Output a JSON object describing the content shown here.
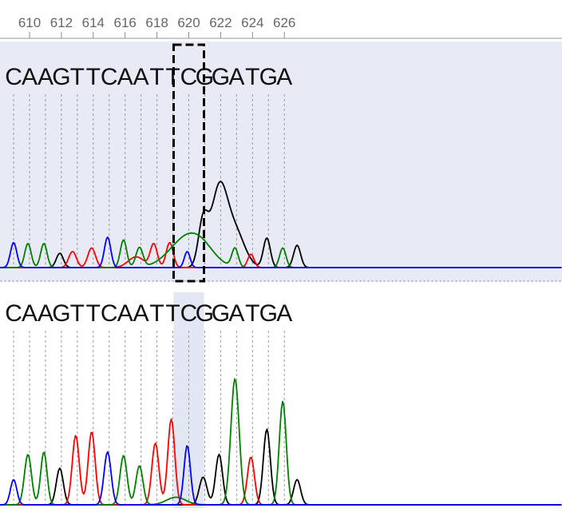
{
  "chart_data": {
    "type": "line",
    "title": "",
    "xlabel": "",
    "ylabel": "",
    "x_axis": {
      "ticks": [
        610,
        612,
        614,
        616,
        618,
        620,
        622,
        624,
        626
      ],
      "tick_labels": [
        "610",
        "612",
        "614",
        "616",
        "618",
        "620",
        "622",
        "624",
        "626"
      ]
    },
    "highlighted_position": 620,
    "base_colors": {
      "A": "#008000",
      "C": "#0000ff",
      "G": "#000000",
      "T": "#ff0000"
    },
    "panel_colors": {
      "top_background": "#e8eaf6",
      "highlight_column": "#e3e6f3"
    },
    "panels": [
      {
        "id": "sample",
        "base_calls": [
          "C",
          "A",
          "A",
          "G",
          "T",
          "T",
          "C",
          "A",
          "A",
          "T",
          "T",
          "C",
          "G",
          "G",
          "A",
          "T",
          "G",
          "A"
        ],
        "peaks": [
          {
            "base": "C",
            "pos": 609.0,
            "h": 0.28,
            "w": 0.2
          },
          {
            "base": "A",
            "pos": 609.9,
            "h": 0.27,
            "w": 0.2
          },
          {
            "base": "A",
            "pos": 610.9,
            "h": 0.27,
            "w": 0.2
          },
          {
            "base": "G",
            "pos": 611.9,
            "h": 0.16,
            "w": 0.22
          },
          {
            "base": "T",
            "pos": 612.7,
            "h": 0.18,
            "w": 0.24
          },
          {
            "base": "T",
            "pos": 613.9,
            "h": 0.22,
            "w": 0.24
          },
          {
            "base": "C",
            "pos": 614.9,
            "h": 0.34,
            "w": 0.2
          },
          {
            "base": "A",
            "pos": 615.9,
            "h": 0.31,
            "w": 0.2
          },
          {
            "base": "T",
            "pos": 616.7,
            "h": 0.12,
            "w": 0.5
          },
          {
            "base": "A",
            "pos": 616.9,
            "h": 0.22,
            "w": 0.22
          },
          {
            "base": "T",
            "pos": 617.8,
            "h": 0.26,
            "w": 0.22
          },
          {
            "base": "T",
            "pos": 618.8,
            "h": 0.28,
            "w": 0.22
          },
          {
            "base": "A",
            "pos": 619.9,
            "h": 0.33,
            "w": 1.1
          },
          {
            "base": "C",
            "pos": 619.9,
            "h": 0.18,
            "w": 0.18
          },
          {
            "base": "G",
            "pos": 620.9,
            "h": 0.5,
            "w": 0.3
          },
          {
            "base": "G",
            "pos": 621.9,
            "h": 0.85,
            "w": 0.5
          },
          {
            "base": "G",
            "pos": 622.9,
            "h": 0.4,
            "w": 0.6
          },
          {
            "base": "A",
            "pos": 620.9,
            "h": 0.1,
            "w": 0.8
          },
          {
            "base": "A",
            "pos": 622.9,
            "h": 0.21,
            "w": 0.2
          },
          {
            "base": "T",
            "pos": 623.9,
            "h": 0.15,
            "w": 0.2
          },
          {
            "base": "G",
            "pos": 624.9,
            "h": 0.33,
            "w": 0.22
          },
          {
            "base": "A",
            "pos": 625.9,
            "h": 0.22,
            "w": 0.2
          },
          {
            "base": "G",
            "pos": 626.8,
            "h": 0.25,
            "w": 0.22
          }
        ]
      },
      {
        "id": "reference",
        "base_calls": [
          "C",
          "A",
          "A",
          "G",
          "T",
          "T",
          "C",
          "A",
          "A",
          "T",
          "T",
          "C",
          "G",
          "G",
          "A",
          "T",
          "G",
          "A"
        ],
        "peaks": [
          {
            "base": "C",
            "pos": 609.0,
            "h": 0.2,
            "w": 0.2
          },
          {
            "base": "A",
            "pos": 609.9,
            "h": 0.4,
            "w": 0.22
          },
          {
            "base": "A",
            "pos": 610.9,
            "h": 0.42,
            "w": 0.2
          },
          {
            "base": "G",
            "pos": 611.9,
            "h": 0.29,
            "w": 0.22
          },
          {
            "base": "T",
            "pos": 612.9,
            "h": 0.55,
            "w": 0.22
          },
          {
            "base": "T",
            "pos": 613.9,
            "h": 0.58,
            "w": 0.22
          },
          {
            "base": "C",
            "pos": 614.9,
            "h": 0.42,
            "w": 0.22
          },
          {
            "base": "A",
            "pos": 615.9,
            "h": 0.39,
            "w": 0.22
          },
          {
            "base": "A",
            "pos": 616.9,
            "h": 0.31,
            "w": 0.22
          },
          {
            "base": "T",
            "pos": 617.9,
            "h": 0.49,
            "w": 0.22
          },
          {
            "base": "T",
            "pos": 618.9,
            "h": 0.68,
            "w": 0.22
          },
          {
            "base": "C",
            "pos": 619.9,
            "h": 0.47,
            "w": 0.2
          },
          {
            "base": "A",
            "pos": 619.2,
            "h": 0.06,
            "w": 0.6
          },
          {
            "base": "G",
            "pos": 620.9,
            "h": 0.22,
            "w": 0.24
          },
          {
            "base": "G",
            "pos": 621.9,
            "h": 0.4,
            "w": 0.22
          },
          {
            "base": "A",
            "pos": 622.9,
            "h": 1.0,
            "w": 0.26
          },
          {
            "base": "T",
            "pos": 623.9,
            "h": 0.38,
            "w": 0.22
          },
          {
            "base": "G",
            "pos": 624.9,
            "h": 0.6,
            "w": 0.22
          },
          {
            "base": "A",
            "pos": 625.9,
            "h": 0.82,
            "w": 0.22
          },
          {
            "base": "G",
            "pos": 626.8,
            "h": 0.2,
            "w": 0.22
          }
        ]
      }
    ]
  }
}
